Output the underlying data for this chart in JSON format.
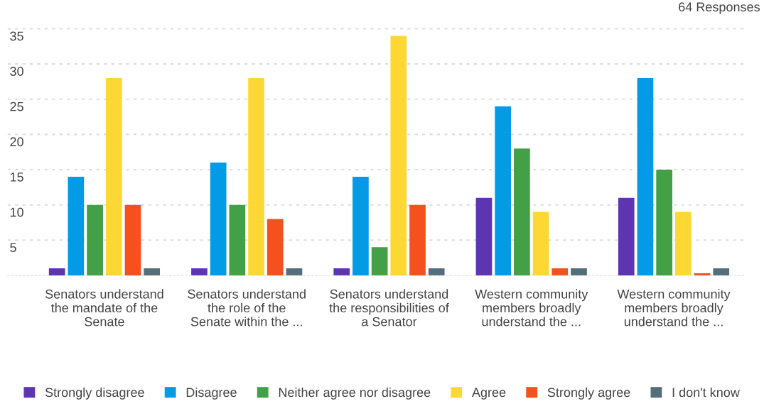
{
  "chart_data": {
    "type": "bar",
    "categories": [
      "Senators understand\nthe mandate of the\nSenate",
      "Senators understand\nthe role of the\nSenate within the ...",
      "Senators understand\nthe responsibilities of\na Senator",
      "Western community\nmembers broadly\nunderstand the ...",
      "Western community\nmembers broadly\nunderstand the ..."
    ],
    "series": [
      {
        "name": "Strongly disagree",
        "color": "#5e35b1",
        "values": [
          1,
          1,
          1,
          11,
          11
        ]
      },
      {
        "name": "Disagree",
        "color": "#039be5",
        "values": [
          14,
          16,
          14,
          24,
          28
        ]
      },
      {
        "name": "Neither agree nor disagree",
        "color": "#43a047",
        "values": [
          10,
          10,
          4,
          18,
          15
        ]
      },
      {
        "name": "Agree",
        "color": "#fdd835",
        "values": [
          28,
          28,
          34,
          9,
          9
        ]
      },
      {
        "name": "Strongly agree",
        "color": "#f4511e",
        "values": [
          10,
          8,
          10,
          1,
          0.3
        ]
      },
      {
        "name": "I don't know",
        "color": "#546e7a",
        "values": [
          1,
          1,
          1,
          1,
          1
        ]
      }
    ],
    "ylim": [
      0,
      35
    ],
    "yticks": [
      5,
      10,
      15,
      20,
      25,
      30,
      35
    ],
    "grid": "y",
    "legend": "bottom",
    "annotations": [
      "64 Responses"
    ]
  }
}
